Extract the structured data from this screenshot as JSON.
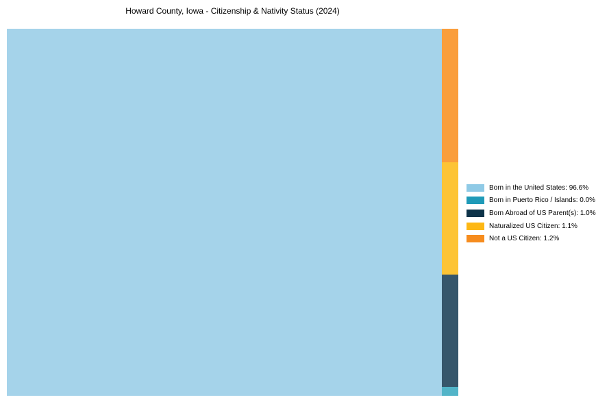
{
  "title": "Howard County, Iowa - Citizenship & Nativity Status (2024)",
  "chart_data": {
    "type": "treemap",
    "title": "Howard County, Iowa - Citizenship & Nativity Status (2024)",
    "categories": [
      "Born in the United States",
      "Born in Puerto Rico / Islands",
      "Born Abroad of US Parent(s)",
      "Naturalized US Citizen",
      "Not a US Citizen"
    ],
    "values": [
      96.6,
      0.0,
      1.0,
      1.1,
      1.2
    ],
    "unit": "%",
    "legend_position": "right",
    "grid": false,
    "axes": false,
    "rects": [
      {
        "key": "born-in-us",
        "label": "Born in the United States",
        "value": 96.6,
        "color": "#A5D3EA",
        "x": 0.0,
        "y": 0.0,
        "w": 0.9636,
        "h": 1.0
      },
      {
        "key": "not-us-citizen",
        "label": "Not a US Citizen",
        "value": 1.2,
        "color": "#FA9E3C",
        "x": 0.9636,
        "y": 0.0,
        "w": 0.0364,
        "h": 0.3638
      },
      {
        "key": "naturalized",
        "label": "Naturalized US Citizen",
        "value": 1.1,
        "color": "#FDC435",
        "x": 0.9636,
        "y": 0.3638,
        "w": 0.0364,
        "h": 0.306
      },
      {
        "key": "born-abroad",
        "label": "Born Abroad of US Parent(s)",
        "value": 1.0,
        "color": "#36566B",
        "x": 0.9636,
        "y": 0.6698,
        "w": 0.0364,
        "h": 0.3059
      },
      {
        "key": "puerto-rico",
        "label": "Born in Puerto Rico / Islands",
        "value": 0.0,
        "color": "#52B4C8",
        "x": 0.9636,
        "y": 0.9757,
        "w": 0.0364,
        "h": 0.0243
      }
    ]
  },
  "legend": {
    "items": [
      {
        "key": "born-in-us",
        "label": "Born in the United States: 96.6%",
        "color": "#8FCAE6"
      },
      {
        "key": "puerto-rico",
        "label": "Born in Puerto Rico / Islands: 0.0%",
        "color": "#1F9AB8"
      },
      {
        "key": "born-abroad",
        "label": "Born Abroad of US Parent(s): 1.0%",
        "color": "#0D3349"
      },
      {
        "key": "naturalized",
        "label": "Naturalized US Citizen: 1.1%",
        "color": "#FDB714"
      },
      {
        "key": "not-us-citizen",
        "label": "Not a US Citizen: 1.2%",
        "color": "#F68C1E"
      }
    ]
  }
}
